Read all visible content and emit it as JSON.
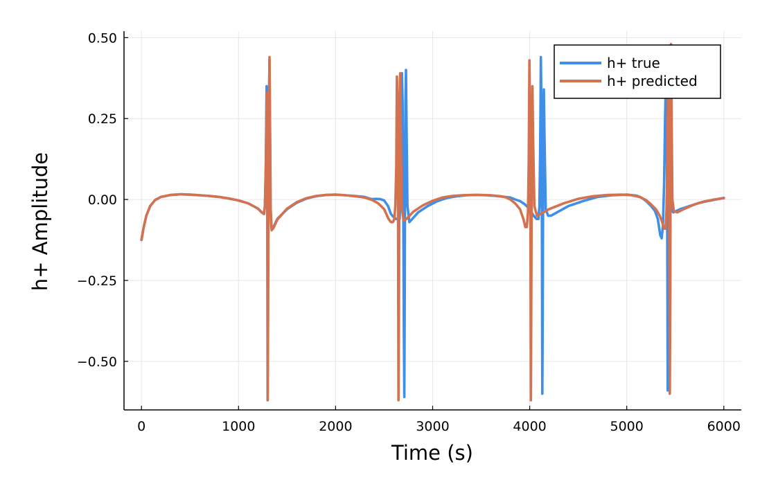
{
  "chart_data": {
    "type": "line",
    "title": "",
    "xlabel": "Time (s)",
    "ylabel": "h+ Amplitude",
    "xlim": [
      -180,
      6180
    ],
    "ylim": [
      -0.65,
      0.52
    ],
    "xticks": [
      0,
      1000,
      2000,
      3000,
      4000,
      5000,
      6000
    ],
    "xtick_labels": [
      "0",
      "1000",
      "2000",
      "3000",
      "4000",
      "5000",
      "6000"
    ],
    "yticks": [
      0.5,
      0.25,
      0.0,
      -0.25,
      -0.5
    ],
    "ytick_labels": [
      "0.50",
      "0.25",
      "0.00",
      "−0.25",
      "−0.50"
    ],
    "grid": true,
    "legend": {
      "position": "top-right"
    },
    "series": [
      {
        "name": "h+ true",
        "color": "#3f8fe8",
        "points": [
          [
            0,
            -0.125
          ],
          [
            20,
            -0.09
          ],
          [
            50,
            -0.05
          ],
          [
            90,
            -0.02
          ],
          [
            140,
            -0.002
          ],
          [
            200,
            0.008
          ],
          [
            300,
            0.014
          ],
          [
            400,
            0.016
          ],
          [
            500,
            0.015
          ],
          [
            600,
            0.013
          ],
          [
            700,
            0.011
          ],
          [
            800,
            0.008
          ],
          [
            900,
            0.003
          ],
          [
            1000,
            -0.003
          ],
          [
            1100,
            -0.012
          ],
          [
            1200,
            -0.028
          ],
          [
            1240,
            -0.04
          ],
          [
            1262,
            -0.045
          ],
          [
            1272,
            -0.02
          ],
          [
            1282,
            0.12
          ],
          [
            1289,
            0.35
          ],
          [
            1293,
            0.33
          ],
          [
            1296,
            0.05
          ],
          [
            1300,
            -0.62
          ],
          [
            1304,
            -0.3
          ],
          [
            1308,
            0.05
          ],
          [
            1313,
            0.25
          ],
          [
            1318,
            0.43
          ],
          [
            1323,
            0.25
          ],
          [
            1330,
            -0.03
          ],
          [
            1340,
            -0.09
          ],
          [
            1360,
            -0.085
          ],
          [
            1400,
            -0.06
          ],
          [
            1500,
            -0.03
          ],
          [
            1600,
            -0.01
          ],
          [
            1700,
            0.003
          ],
          [
            1800,
            0.01
          ],
          [
            1900,
            0.014
          ],
          [
            2000,
            0.015
          ],
          [
            2100,
            0.013
          ],
          [
            2200,
            0.011
          ],
          [
            2300,
            0.008
          ],
          [
            2350,
            0.003
          ],
          [
            2380,
            0.001
          ],
          [
            2420,
            0.002
          ],
          [
            2460,
            0.001
          ],
          [
            2500,
            -0.003
          ],
          [
            2540,
            -0.02
          ],
          [
            2570,
            -0.045
          ],
          [
            2600,
            -0.055
          ],
          [
            2620,
            -0.06
          ],
          [
            2630,
            -0.06
          ],
          [
            2640,
            -0.06
          ],
          [
            2648,
            -0.05
          ],
          [
            2660,
            -0.06
          ],
          [
            2670,
            0.05
          ],
          [
            2678,
            0.26
          ],
          [
            2684,
            0.39
          ],
          [
            2690,
            0.3
          ],
          [
            2697,
            0.0
          ],
          [
            2703,
            -0.4
          ],
          [
            2708,
            -0.61
          ],
          [
            2712,
            -0.3
          ],
          [
            2716,
            0.1
          ],
          [
            2720,
            0.3
          ],
          [
            2725,
            0.4
          ],
          [
            2730,
            0.25
          ],
          [
            2740,
            -0.02
          ],
          [
            2760,
            -0.07
          ],
          [
            2790,
            -0.06
          ],
          [
            2850,
            -0.04
          ],
          [
            2950,
            -0.02
          ],
          [
            3050,
            -0.005
          ],
          [
            3150,
            0.005
          ],
          [
            3250,
            0.01
          ],
          [
            3350,
            0.013
          ],
          [
            3450,
            0.014
          ],
          [
            3550,
            0.013
          ],
          [
            3650,
            0.011
          ],
          [
            3750,
            0.008
          ],
          [
            3800,
            0.006
          ],
          [
            3850,
            0.0
          ],
          [
            3900,
            -0.005
          ],
          [
            3950,
            -0.015
          ],
          [
            4000,
            -0.03
          ],
          [
            4040,
            -0.05
          ],
          [
            4070,
            -0.06
          ],
          [
            4090,
            -0.06
          ],
          [
            4100,
            -0.02
          ],
          [
            4108,
            0.15
          ],
          [
            4115,
            0.44
          ],
          [
            4120,
            0.3
          ],
          [
            4125,
            0.0
          ],
          [
            4130,
            -0.6
          ],
          [
            4134,
            -0.35
          ],
          [
            4138,
            0.0
          ],
          [
            4142,
            0.25
          ],
          [
            4146,
            0.34
          ],
          [
            4152,
            0.2
          ],
          [
            4165,
            -0.03
          ],
          [
            4190,
            -0.05
          ],
          [
            4220,
            -0.05
          ],
          [
            4280,
            -0.04
          ],
          [
            4400,
            -0.02
          ],
          [
            4550,
            -0.005
          ],
          [
            4700,
            0.008
          ],
          [
            4850,
            0.013
          ],
          [
            5000,
            0.015
          ],
          [
            5100,
            0.012
          ],
          [
            5150,
            0.006
          ],
          [
            5200,
            -0.005
          ],
          [
            5250,
            -0.02
          ],
          [
            5290,
            -0.035
          ],
          [
            5320,
            -0.06
          ],
          [
            5345,
            -0.11
          ],
          [
            5360,
            -0.12
          ],
          [
            5373,
            -0.08
          ],
          [
            5385,
            0.05
          ],
          [
            5395,
            0.25
          ],
          [
            5403,
            0.36
          ],
          [
            5410,
            0.3
          ],
          [
            5416,
            0.0
          ],
          [
            5422,
            -0.59
          ],
          [
            5427,
            -0.4
          ],
          [
            5432,
            -0.05
          ],
          [
            5440,
            0.15
          ],
          [
            5448,
            0.02
          ],
          [
            5458,
            -0.03
          ],
          [
            5480,
            -0.04
          ],
          [
            5550,
            -0.03
          ],
          [
            5650,
            -0.02
          ],
          [
            5750,
            -0.01
          ],
          [
            5850,
            -0.004
          ],
          [
            5950,
            0.002
          ],
          [
            6000,
            0.005
          ]
        ]
      },
      {
        "name": "h+ predicted",
        "color": "#d4714e",
        "points": [
          [
            0,
            -0.125
          ],
          [
            20,
            -0.09
          ],
          [
            50,
            -0.05
          ],
          [
            90,
            -0.02
          ],
          [
            140,
            -0.002
          ],
          [
            200,
            0.008
          ],
          [
            300,
            0.014
          ],
          [
            400,
            0.016
          ],
          [
            500,
            0.015
          ],
          [
            600,
            0.013
          ],
          [
            700,
            0.011
          ],
          [
            800,
            0.008
          ],
          [
            900,
            0.003
          ],
          [
            1000,
            -0.003
          ],
          [
            1100,
            -0.012
          ],
          [
            1200,
            -0.028
          ],
          [
            1240,
            -0.04
          ],
          [
            1262,
            -0.045
          ],
          [
            1272,
            -0.02
          ],
          [
            1282,
            0.1
          ],
          [
            1290,
            0.33
          ],
          [
            1294,
            0.3
          ],
          [
            1297,
            0.05
          ],
          [
            1301,
            -0.62
          ],
          [
            1305,
            -0.3
          ],
          [
            1309,
            0.05
          ],
          [
            1314,
            0.28
          ],
          [
            1319,
            0.44
          ],
          [
            1324,
            0.25
          ],
          [
            1331,
            -0.03
          ],
          [
            1342,
            -0.095
          ],
          [
            1360,
            -0.088
          ],
          [
            1400,
            -0.062
          ],
          [
            1500,
            -0.028
          ],
          [
            1600,
            -0.008
          ],
          [
            1700,
            0.004
          ],
          [
            1800,
            0.011
          ],
          [
            1900,
            0.014
          ],
          [
            2000,
            0.015
          ],
          [
            2100,
            0.013
          ],
          [
            2200,
            0.01
          ],
          [
            2300,
            0.006
          ],
          [
            2380,
            -0.002
          ],
          [
            2440,
            -0.012
          ],
          [
            2500,
            -0.03
          ],
          [
            2545,
            -0.06
          ],
          [
            2570,
            -0.07
          ],
          [
            2590,
            -0.07
          ],
          [
            2605,
            -0.06
          ],
          [
            2615,
            -0.02
          ],
          [
            2625,
            0.1
          ],
          [
            2632,
            0.38
          ],
          [
            2638,
            0.32
          ],
          [
            2643,
            0.0
          ],
          [
            2648,
            -0.62
          ],
          [
            2652,
            -0.4
          ],
          [
            2656,
            -0.05
          ],
          [
            2660,
            0.25
          ],
          [
            2665,
            0.39
          ],
          [
            2670,
            0.25
          ],
          [
            2680,
            -0.02
          ],
          [
            2700,
            -0.065
          ],
          [
            2730,
            -0.06
          ],
          [
            2800,
            -0.038
          ],
          [
            2900,
            -0.018
          ],
          [
            3000,
            -0.004
          ],
          [
            3100,
            0.006
          ],
          [
            3200,
            0.011
          ],
          [
            3300,
            0.013
          ],
          [
            3400,
            0.014
          ],
          [
            3500,
            0.014
          ],
          [
            3600,
            0.013
          ],
          [
            3700,
            0.01
          ],
          [
            3750,
            0.007
          ],
          [
            3800,
            0.0
          ],
          [
            3850,
            -0.012
          ],
          [
            3900,
            -0.03
          ],
          [
            3935,
            -0.06
          ],
          [
            3955,
            -0.085
          ],
          [
            3970,
            -0.085
          ],
          [
            3982,
            -0.04
          ],
          [
            3990,
            0.12
          ],
          [
            3997,
            0.43
          ],
          [
            4002,
            0.3
          ],
          [
            4007,
            0.0
          ],
          [
            4012,
            -0.62
          ],
          [
            4016,
            -0.35
          ],
          [
            4020,
            0.0
          ],
          [
            4024,
            0.2
          ],
          [
            4028,
            0.35
          ],
          [
            4034,
            0.2
          ],
          [
            4048,
            -0.02
          ],
          [
            4075,
            -0.05
          ],
          [
            4110,
            -0.045
          ],
          [
            4200,
            -0.03
          ],
          [
            4350,
            -0.012
          ],
          [
            4500,
            0.002
          ],
          [
            4650,
            0.01
          ],
          [
            4800,
            0.014
          ],
          [
            4950,
            0.015
          ],
          [
            5050,
            0.013
          ],
          [
            5130,
            0.008
          ],
          [
            5200,
            -0.002
          ],
          [
            5250,
            -0.015
          ],
          [
            5300,
            -0.03
          ],
          [
            5340,
            -0.05
          ],
          [
            5365,
            -0.07
          ],
          [
            5385,
            -0.09
          ],
          [
            5400,
            -0.09
          ],
          [
            5410,
            -0.03
          ],
          [
            5418,
            0.1
          ],
          [
            5426,
            0.36
          ],
          [
            5432,
            0.3
          ],
          [
            5437,
            0.0
          ],
          [
            5443,
            -0.6
          ],
          [
            5448,
            -0.3
          ],
          [
            5452,
            0.2
          ],
          [
            5456,
            0.48
          ],
          [
            5461,
            0.3
          ],
          [
            5470,
            0.0
          ],
          [
            5485,
            -0.035
          ],
          [
            5520,
            -0.04
          ],
          [
            5600,
            -0.028
          ],
          [
            5700,
            -0.015
          ],
          [
            5800,
            -0.006
          ],
          [
            5900,
            0.0
          ],
          [
            6000,
            0.004
          ]
        ]
      }
    ]
  }
}
